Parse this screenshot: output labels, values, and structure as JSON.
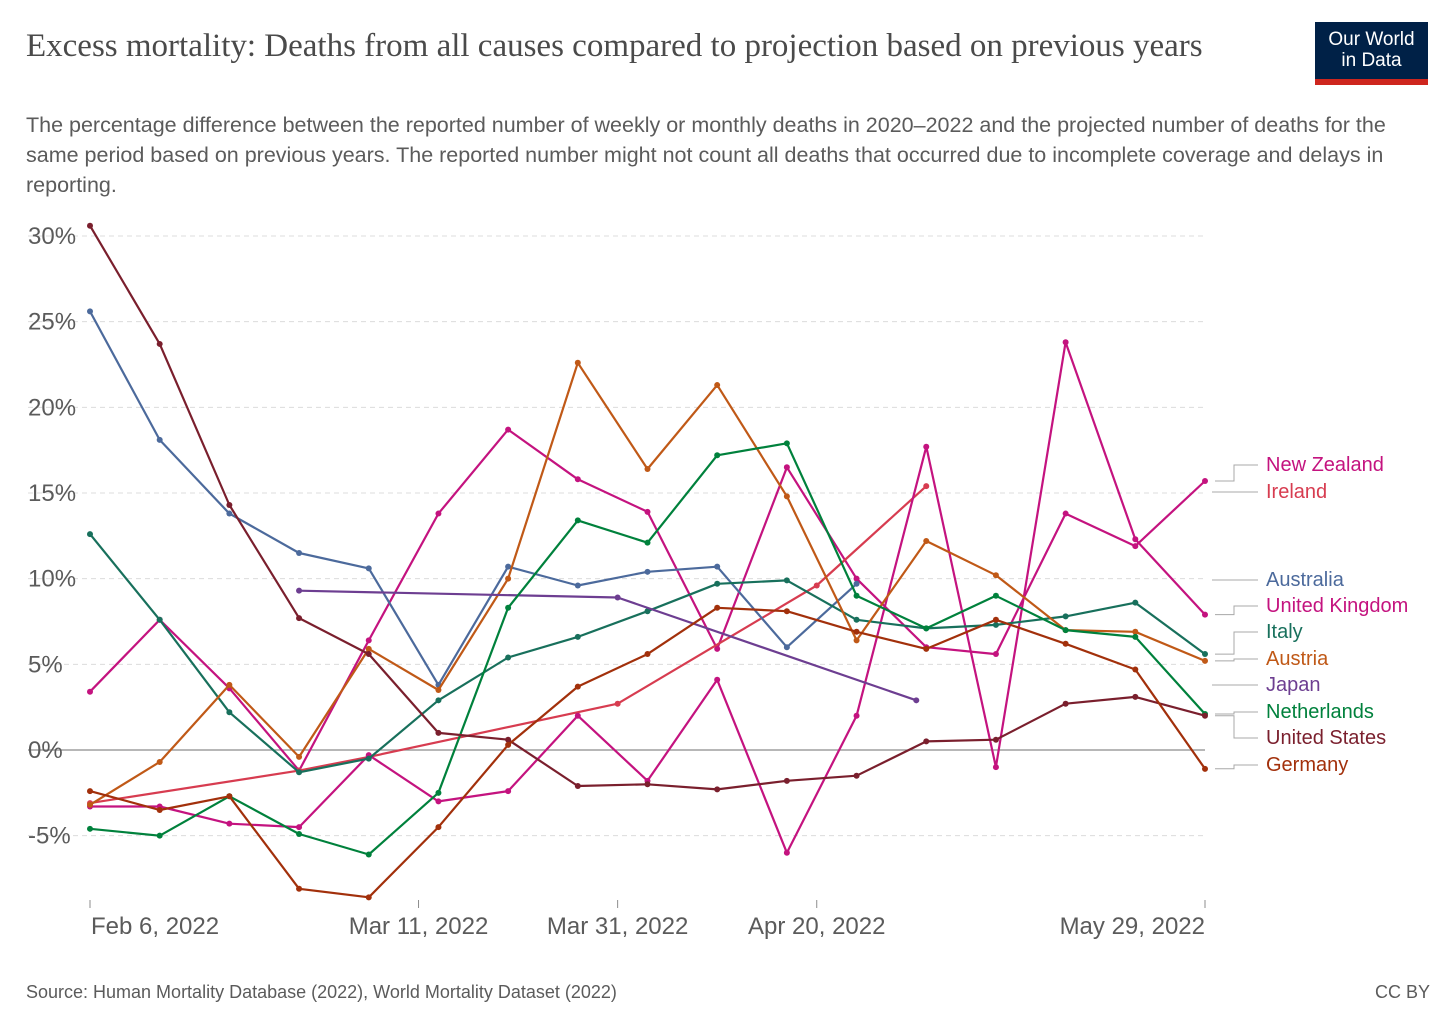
{
  "header": {
    "title": "Excess mortality: Deaths from all causes compared to projection based on previous years",
    "subtitle": "The percentage difference between the reported number of weekly or monthly deaths in 2020–2022 and the projected number of deaths for the same period based on previous years. The reported number might not count all deaths that occurred due to incomplete coverage and delays in reporting.",
    "logo_line1": "Our World",
    "logo_line2": "in Data"
  },
  "footer": {
    "source": "Source: Human Mortality Database (2022), World Mortality Dataset (2022)",
    "license": "CC BY"
  },
  "chart_data": {
    "type": "line",
    "title": "Excess mortality: Deaths from all causes compared to projection based on previous years",
    "x_axis": {
      "type": "date",
      "range": [
        "2022-02-06",
        "2022-05-29"
      ],
      "ticks": [
        {
          "date": "2022-02-06",
          "label": "Feb 6, 2022"
        },
        {
          "date": "2022-03-11",
          "label": "Mar 11, 2022"
        },
        {
          "date": "2022-03-31",
          "label": "Mar 31, 2022"
        },
        {
          "date": "2022-04-20",
          "label": "Apr 20, 2022"
        },
        {
          "date": "2022-05-29",
          "label": "May 29, 2022"
        }
      ]
    },
    "y_axis": {
      "min": -9,
      "max": 30,
      "ticks": [
        -5,
        0,
        5,
        10,
        15,
        20,
        25,
        30
      ],
      "tick_labels": [
        "-5%",
        "0%",
        "5%",
        "10%",
        "15%",
        "20%",
        "25%",
        "30%"
      ]
    },
    "grid": "horizontal dashed",
    "legend": "line labels at right",
    "series": [
      {
        "name": "New Zealand",
        "color": "#c4137f",
        "points": [
          [
            "2022-02-06",
            3.4
          ],
          [
            "2022-02-13",
            7.6
          ],
          [
            "2022-02-20",
            3.6
          ],
          [
            "2022-02-27",
            -1.2
          ],
          [
            "2022-03-06",
            6.4
          ],
          [
            "2022-03-13",
            13.8
          ],
          [
            "2022-03-20",
            18.7
          ],
          [
            "2022-03-27",
            15.8
          ],
          [
            "2022-04-03",
            13.9
          ],
          [
            "2022-04-10",
            5.9
          ],
          [
            "2022-04-17",
            16.5
          ],
          [
            "2022-04-24",
            10.0
          ],
          [
            "2022-05-01",
            6.0
          ],
          [
            "2022-05-08",
            5.6
          ],
          [
            "2022-05-15",
            13.8
          ],
          [
            "2022-05-22",
            11.9
          ],
          [
            "2022-05-29",
            15.7
          ]
        ]
      },
      {
        "name": "Ireland",
        "color": "#d73c50",
        "points": [
          [
            "2022-02-06",
            -3.1
          ],
          [
            "2022-02-27",
            -1.2
          ],
          [
            "2022-03-06",
            -0.4
          ],
          [
            "2022-03-31",
            2.7
          ],
          [
            "2022-04-20",
            9.6
          ],
          [
            "2022-05-01",
            15.4
          ]
        ]
      },
      {
        "name": "Australia",
        "color": "#4c6a9c",
        "points": [
          [
            "2022-02-06",
            25.6
          ],
          [
            "2022-02-13",
            18.1
          ],
          [
            "2022-02-20",
            13.8
          ],
          [
            "2022-02-27",
            11.5
          ],
          [
            "2022-03-06",
            10.6
          ],
          [
            "2022-03-13",
            3.8
          ],
          [
            "2022-03-20",
            10.7
          ],
          [
            "2022-03-27",
            9.6
          ],
          [
            "2022-04-03",
            10.4
          ],
          [
            "2022-04-10",
            10.7
          ],
          [
            "2022-04-17",
            6.0
          ],
          [
            "2022-04-24",
            9.7
          ]
        ]
      },
      {
        "name": "United Kingdom",
        "color": "#c4137f",
        "points": [
          [
            "2022-02-06",
            -3.3
          ],
          [
            "2022-02-13",
            -3.3
          ],
          [
            "2022-02-20",
            -4.3
          ],
          [
            "2022-02-27",
            -4.5
          ],
          [
            "2022-03-06",
            -0.3
          ],
          [
            "2022-03-13",
            -3.0
          ],
          [
            "2022-03-20",
            -2.4
          ],
          [
            "2022-03-27",
            2.0
          ],
          [
            "2022-04-03",
            -1.8
          ],
          [
            "2022-04-10",
            4.1
          ],
          [
            "2022-04-17",
            -6.0
          ],
          [
            "2022-04-24",
            2.0
          ],
          [
            "2022-05-01",
            17.7
          ],
          [
            "2022-05-08",
            -1.0
          ],
          [
            "2022-05-15",
            23.8
          ],
          [
            "2022-05-22",
            12.3
          ],
          [
            "2022-05-29",
            7.9
          ]
        ]
      },
      {
        "name": "Italy",
        "color": "#18705c",
        "points": [
          [
            "2022-02-06",
            12.6
          ],
          [
            "2022-02-13",
            7.6
          ],
          [
            "2022-02-20",
            2.2
          ],
          [
            "2022-02-27",
            -1.3
          ],
          [
            "2022-03-06",
            -0.5
          ],
          [
            "2022-03-13",
            2.9
          ],
          [
            "2022-03-20",
            5.4
          ],
          [
            "2022-03-27",
            6.6
          ],
          [
            "2022-04-03",
            8.1
          ],
          [
            "2022-04-10",
            9.7
          ],
          [
            "2022-04-17",
            9.9
          ],
          [
            "2022-04-24",
            7.6
          ],
          [
            "2022-05-01",
            7.1
          ],
          [
            "2022-05-08",
            7.3
          ],
          [
            "2022-05-15",
            7.8
          ],
          [
            "2022-05-22",
            8.6
          ],
          [
            "2022-05-29",
            5.6
          ]
        ]
      },
      {
        "name": "Austria",
        "color": "#c05917",
        "points": [
          [
            "2022-02-06",
            -3.2
          ],
          [
            "2022-02-13",
            -0.7
          ],
          [
            "2022-02-20",
            3.8
          ],
          [
            "2022-02-27",
            -0.4
          ],
          [
            "2022-03-06",
            5.9
          ],
          [
            "2022-03-13",
            3.5
          ],
          [
            "2022-03-20",
            10.0
          ],
          [
            "2022-03-27",
            22.6
          ],
          [
            "2022-04-03",
            16.4
          ],
          [
            "2022-04-10",
            21.3
          ],
          [
            "2022-04-17",
            14.8
          ],
          [
            "2022-04-24",
            6.4
          ],
          [
            "2022-05-01",
            12.2
          ],
          [
            "2022-05-08",
            10.2
          ],
          [
            "2022-05-15",
            7.0
          ],
          [
            "2022-05-22",
            6.9
          ],
          [
            "2022-05-29",
            5.2
          ]
        ]
      },
      {
        "name": "Japan",
        "color": "#6d3e91",
        "points": [
          [
            "2022-02-27",
            9.3
          ],
          [
            "2022-03-31",
            8.9
          ],
          [
            "2022-04-30",
            2.9
          ]
        ]
      },
      {
        "name": "Netherlands",
        "color": "#00813c",
        "points": [
          [
            "2022-02-06",
            -4.6
          ],
          [
            "2022-02-13",
            -5.0
          ],
          [
            "2022-02-20",
            -2.7
          ],
          [
            "2022-02-27",
            -4.9
          ],
          [
            "2022-03-06",
            -6.1
          ],
          [
            "2022-03-13",
            -2.5
          ],
          [
            "2022-03-20",
            8.3
          ],
          [
            "2022-03-27",
            13.4
          ],
          [
            "2022-04-03",
            12.1
          ],
          [
            "2022-04-10",
            17.2
          ],
          [
            "2022-04-17",
            17.9
          ],
          [
            "2022-04-24",
            9.0
          ],
          [
            "2022-05-01",
            7.1
          ],
          [
            "2022-05-08",
            9.0
          ],
          [
            "2022-05-15",
            7.0
          ],
          [
            "2022-05-22",
            6.6
          ],
          [
            "2022-05-29",
            2.1
          ]
        ]
      },
      {
        "name": "United States",
        "color": "#7a1f2d",
        "points": [
          [
            "2022-02-06",
            30.6
          ],
          [
            "2022-02-13",
            23.7
          ],
          [
            "2022-02-20",
            14.3
          ],
          [
            "2022-02-27",
            7.7
          ],
          [
            "2022-03-06",
            5.6
          ],
          [
            "2022-03-13",
            1.0
          ],
          [
            "2022-03-20",
            0.6
          ],
          [
            "2022-03-27",
            -2.1
          ],
          [
            "2022-04-03",
            -2.0
          ],
          [
            "2022-04-10",
            -2.3
          ],
          [
            "2022-04-17",
            -1.8
          ],
          [
            "2022-04-24",
            -1.5
          ],
          [
            "2022-05-01",
            0.5
          ],
          [
            "2022-05-08",
            0.6
          ],
          [
            "2022-05-15",
            2.7
          ],
          [
            "2022-05-22",
            3.1
          ],
          [
            "2022-05-29",
            2.0
          ]
        ]
      },
      {
        "name": "Germany",
        "color": "#a2300b",
        "points": [
          [
            "2022-02-06",
            -2.4
          ],
          [
            "2022-02-13",
            -3.5
          ],
          [
            "2022-02-20",
            -2.7
          ],
          [
            "2022-02-27",
            -8.1
          ],
          [
            "2022-03-06",
            -8.6
          ],
          [
            "2022-03-13",
            -4.5
          ],
          [
            "2022-03-20",
            0.3
          ],
          [
            "2022-03-27",
            3.7
          ],
          [
            "2022-04-03",
            5.6
          ],
          [
            "2022-04-10",
            8.3
          ],
          [
            "2022-04-17",
            8.1
          ],
          [
            "2022-04-24",
            6.9
          ],
          [
            "2022-05-01",
            5.9
          ],
          [
            "2022-05-08",
            7.6
          ],
          [
            "2022-05-15",
            6.2
          ],
          [
            "2022-05-22",
            4.7
          ],
          [
            "2022-05-29",
            -1.1
          ]
        ]
      }
    ]
  }
}
